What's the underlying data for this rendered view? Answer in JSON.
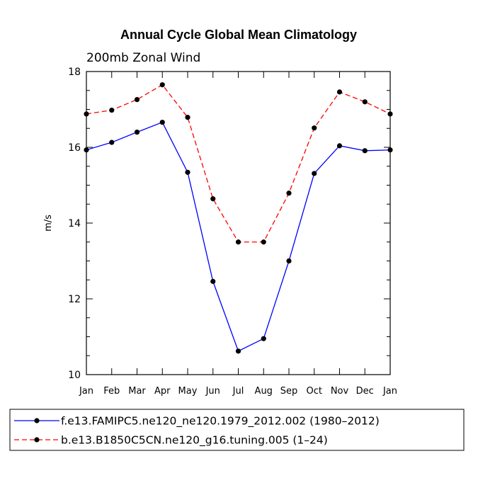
{
  "chart_data": {
    "type": "line",
    "title": "Annual Cycle Global Mean Climatology",
    "subtitle": "200mb Zonal Wind",
    "xlabel": "",
    "ylabel": "m/s",
    "ylim": [
      10,
      18
    ],
    "yticks": [
      10,
      12,
      14,
      16,
      18
    ],
    "categories": [
      "Jan",
      "Feb",
      "Mar",
      "Apr",
      "May",
      "Jun",
      "Jul",
      "Aug",
      "Sep",
      "Oct",
      "Nov",
      "Dec",
      "Jan"
    ],
    "series": [
      {
        "name": "f.e13.FAMIPC5.ne120_ne120.1979_2012.002 (1980–2012)",
        "color": "#0000ff",
        "dash": "solid",
        "values": [
          15.93,
          16.13,
          16.4,
          16.66,
          15.34,
          12.46,
          10.62,
          10.95,
          13.0,
          15.31,
          16.04,
          15.91,
          15.93
        ]
      },
      {
        "name": "b.e13.B1850C5CN.ne120_g16.tuning.005 (1–24)",
        "color": "#ff0000",
        "dash": "dashed",
        "values": [
          16.88,
          16.98,
          17.26,
          17.65,
          16.79,
          14.64,
          13.5,
          13.5,
          14.79,
          16.51,
          17.46,
          17.2,
          16.88
        ]
      }
    ],
    "legend_position": "bottom"
  }
}
